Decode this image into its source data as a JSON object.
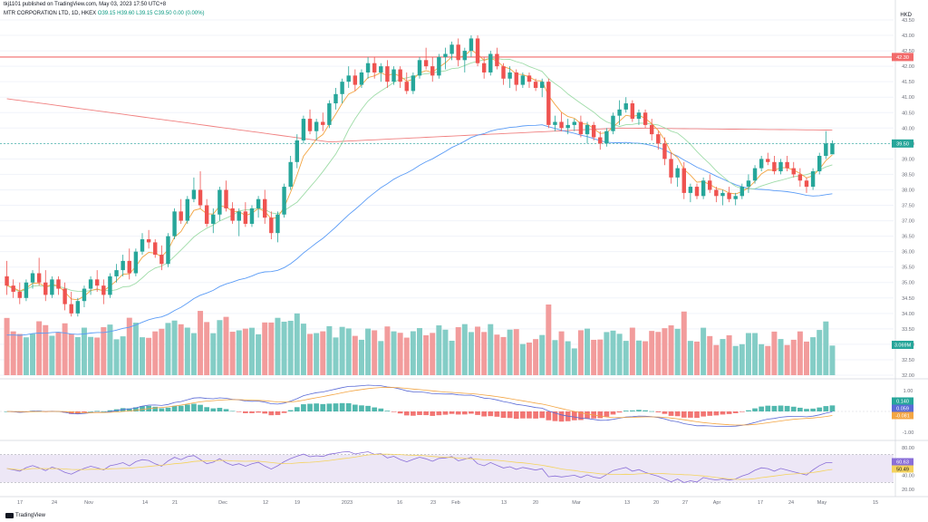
{
  "header": {
    "publisher_line": "tkj1101 published on TradingView.com, May 03, 2023 17:50 UTC+8",
    "symbol_line": "MTR CORPORATION LTD, 1D, HKEX",
    "ohlc_line": "O39.15 H39.60 L39.15 C39.50 0.00 (0.00%)",
    "currency": "HKD"
  },
  "branding": {
    "logo_text": "TradingView"
  },
  "colors": {
    "up": "#26a69a",
    "down": "#ef5350",
    "vol_up": "#84cdc6",
    "vol_down": "#f29c9c",
    "sma_blue": "#5b9cf6",
    "sma_red": "#f08080",
    "sma_green": "#9fdca8",
    "ema_orange": "#f3a543",
    "macd_line": "#5b6bd6",
    "macd_signal": "#f3a543",
    "rsi_line": "#8a6fd8",
    "rsi_ma": "#f4d35e",
    "rsi_band": "#ede7f6",
    "resistance": "#f26b6b",
    "grid": "#f0f3fa"
  },
  "chart_data": [
    {
      "type": "candlestick",
      "panel": "price",
      "y_axis_ticks": [
        "43.50",
        "43.00",
        "42.50",
        "42.00",
        "41.50",
        "41.00",
        "40.50",
        "40.00",
        "39.50",
        "39.00",
        "38.50",
        "38.00",
        "37.50",
        "37.00",
        "36.50",
        "36.00",
        "35.50",
        "35.00",
        "34.50",
        "34.00",
        "33.50",
        "33.00",
        "32.50",
        "32.00"
      ],
      "ylim": [
        32.0,
        43.5
      ],
      "last_price_label": "39.50",
      "resistance_label": "42.30",
      "resistance_value": 42.3,
      "volume_label": "3.069M",
      "x_axis_ticks": [
        "17",
        "24",
        "Nov",
        "14",
        "21",
        "Dec",
        "12",
        "19",
        "2023",
        "16",
        "23",
        "Feb",
        "13",
        "20",
        "Mar",
        "13",
        "20",
        "27",
        "Apr",
        "17",
        "24",
        "May",
        "15"
      ],
      "candles": [
        [
          35.2,
          35.7,
          34.6,
          34.9
        ],
        [
          34.9,
          35.1,
          34.5,
          34.7
        ],
        [
          34.7,
          35.0,
          34.3,
          34.5
        ],
        [
          34.5,
          35.1,
          34.4,
          35.0
        ],
        [
          35.0,
          35.4,
          34.8,
          35.3
        ],
        [
          35.3,
          35.8,
          34.9,
          35.0
        ],
        [
          35.0,
          35.4,
          34.4,
          34.6
        ],
        [
          34.6,
          35.2,
          34.5,
          35.1
        ],
        [
          35.1,
          35.2,
          34.6,
          34.8
        ],
        [
          34.8,
          35.0,
          34.1,
          34.3
        ],
        [
          34.3,
          34.7,
          33.9,
          34.0
        ],
        [
          34.0,
          34.5,
          33.9,
          34.4
        ],
        [
          34.4,
          34.9,
          34.2,
          34.8
        ],
        [
          34.8,
          35.2,
          34.6,
          35.1
        ],
        [
          35.1,
          35.4,
          34.7,
          34.9
        ],
        [
          34.9,
          35.1,
          34.3,
          34.6
        ],
        [
          34.6,
          35.3,
          34.5,
          35.2
        ],
        [
          35.2,
          35.6,
          35.0,
          35.4
        ],
        [
          35.4,
          35.9,
          35.2,
          35.7
        ],
        [
          35.7,
          36.1,
          35.1,
          35.3
        ],
        [
          35.3,
          36.1,
          35.2,
          36.0
        ],
        [
          36.0,
          36.6,
          35.9,
          36.4
        ],
        [
          36.4,
          36.7,
          36.1,
          36.3
        ],
        [
          36.3,
          36.4,
          35.8,
          35.9
        ],
        [
          35.9,
          36.2,
          35.4,
          35.6
        ],
        [
          35.6,
          36.6,
          35.5,
          36.5
        ],
        [
          36.5,
          37.4,
          36.4,
          37.3
        ],
        [
          37.3,
          37.7,
          36.9,
          37.0
        ],
        [
          37.0,
          37.8,
          36.9,
          37.7
        ],
        [
          37.7,
          38.4,
          37.6,
          38.0
        ],
        [
          38.0,
          38.6,
          37.4,
          37.5
        ],
        [
          37.5,
          37.7,
          36.8,
          36.9
        ],
        [
          36.9,
          37.4,
          36.6,
          37.2
        ],
        [
          37.2,
          38.1,
          37.0,
          38.0
        ],
        [
          38.0,
          38.3,
          37.3,
          37.4
        ],
        [
          37.4,
          37.6,
          36.9,
          37.0
        ],
        [
          37.0,
          37.4,
          36.5,
          37.3
        ],
        [
          37.3,
          37.6,
          36.8,
          36.9
        ],
        [
          36.9,
          37.5,
          36.8,
          37.4
        ],
        [
          37.4,
          37.8,
          37.1,
          37.7
        ],
        [
          37.7,
          38.0,
          36.9,
          37.1
        ],
        [
          37.1,
          37.3,
          36.4,
          36.6
        ],
        [
          36.6,
          37.3,
          36.3,
          37.2
        ],
        [
          37.2,
          38.2,
          37.1,
          38.1
        ],
        [
          38.1,
          39.1,
          38.0,
          38.9
        ],
        [
          38.9,
          39.8,
          38.7,
          39.6
        ],
        [
          39.6,
          40.4,
          39.5,
          40.3
        ],
        [
          40.3,
          40.6,
          39.8,
          39.9
        ],
        [
          39.9,
          40.3,
          39.6,
          40.2
        ],
        [
          40.2,
          40.5,
          39.9,
          40.1
        ],
        [
          40.1,
          40.9,
          40.0,
          40.8
        ],
        [
          40.8,
          41.3,
          40.6,
          41.1
        ],
        [
          41.1,
          41.6,
          40.8,
          41.5
        ],
        [
          41.5,
          42.0,
          41.3,
          41.7
        ],
        [
          41.7,
          41.9,
          41.2,
          41.4
        ],
        [
          41.4,
          41.9,
          41.3,
          41.8
        ],
        [
          41.8,
          42.3,
          41.6,
          42.1
        ],
        [
          42.1,
          42.3,
          41.6,
          41.8
        ],
        [
          41.8,
          42.1,
          41.5,
          42.0
        ],
        [
          42.0,
          42.2,
          41.3,
          41.5
        ],
        [
          41.5,
          42.0,
          41.4,
          41.9
        ],
        [
          41.9,
          42.0,
          41.3,
          41.5
        ],
        [
          41.5,
          41.8,
          41.1,
          41.2
        ],
        [
          41.2,
          41.8,
          41.1,
          41.7
        ],
        [
          41.7,
          42.3,
          41.6,
          42.2
        ],
        [
          42.2,
          42.6,
          41.9,
          42.0
        ],
        [
          42.0,
          42.3,
          41.5,
          41.7
        ],
        [
          41.7,
          42.4,
          41.6,
          42.3
        ],
        [
          42.3,
          42.6,
          41.9,
          42.4
        ],
        [
          42.4,
          42.8,
          42.2,
          42.7
        ],
        [
          42.7,
          42.9,
          42.0,
          42.2
        ],
        [
          42.2,
          42.6,
          41.8,
          42.5
        ],
        [
          42.5,
          43.0,
          42.3,
          42.9
        ],
        [
          42.9,
          43.0,
          42.0,
          42.1
        ],
        [
          42.1,
          42.3,
          41.6,
          41.8
        ],
        [
          41.8,
          42.5,
          41.7,
          42.4
        ],
        [
          42.4,
          42.6,
          41.9,
          42.0
        ],
        [
          42.0,
          42.1,
          41.4,
          41.6
        ],
        [
          41.6,
          42.0,
          41.3,
          41.8
        ],
        [
          41.8,
          41.9,
          41.2,
          41.4
        ],
        [
          41.4,
          41.8,
          41.3,
          41.7
        ],
        [
          41.7,
          41.8,
          41.3,
          41.5
        ],
        [
          41.5,
          41.6,
          41.2,
          41.3
        ],
        [
          41.3,
          41.6,
          41.0,
          41.5
        ],
        [
          41.5,
          41.6,
          40.0,
          40.1
        ],
        [
          40.1,
          40.4,
          39.9,
          40.2
        ],
        [
          40.2,
          40.5,
          39.9,
          40.0
        ],
        [
          40.0,
          40.3,
          39.8,
          40.1
        ],
        [
          40.1,
          40.3,
          39.9,
          40.2
        ],
        [
          40.2,
          40.4,
          39.7,
          39.8
        ],
        [
          39.8,
          40.2,
          39.5,
          40.1
        ],
        [
          40.1,
          40.2,
          39.6,
          39.7
        ],
        [
          39.7,
          39.9,
          39.3,
          39.5
        ],
        [
          39.5,
          40.0,
          39.4,
          39.9
        ],
        [
          39.9,
          40.5,
          39.8,
          40.4
        ],
        [
          40.4,
          40.9,
          40.1,
          40.6
        ],
        [
          40.6,
          41.0,
          40.5,
          40.8
        ],
        [
          40.8,
          40.9,
          40.2,
          40.3
        ],
        [
          40.3,
          40.6,
          40.1,
          40.5
        ],
        [
          40.5,
          40.6,
          40.0,
          40.1
        ],
        [
          40.1,
          40.3,
          39.6,
          39.8
        ],
        [
          39.8,
          39.9,
          39.3,
          39.5
        ],
        [
          39.5,
          39.7,
          38.8,
          39.0
        ],
        [
          39.0,
          39.2,
          38.2,
          38.4
        ],
        [
          38.4,
          38.8,
          38.1,
          38.7
        ],
        [
          38.7,
          38.9,
          37.7,
          37.9
        ],
        [
          37.9,
          38.2,
          37.6,
          38.1
        ],
        [
          38.1,
          38.2,
          37.7,
          37.8
        ],
        [
          37.8,
          38.4,
          37.7,
          38.3
        ],
        [
          38.3,
          38.5,
          37.9,
          38.0
        ],
        [
          38.0,
          38.1,
          37.6,
          37.8
        ],
        [
          37.8,
          38.0,
          37.5,
          37.9
        ],
        [
          37.9,
          38.1,
          37.6,
          37.7
        ],
        [
          37.7,
          37.9,
          37.5,
          37.8
        ],
        [
          37.8,
          38.2,
          37.7,
          38.1
        ],
        [
          38.1,
          38.5,
          37.9,
          38.3
        ],
        [
          38.3,
          38.8,
          38.2,
          38.7
        ],
        [
          38.7,
          39.1,
          38.6,
          39.0
        ],
        [
          39.0,
          39.2,
          38.8,
          38.9
        ],
        [
          38.9,
          39.1,
          38.5,
          38.6
        ],
        [
          38.6,
          39.0,
          38.5,
          38.9
        ],
        [
          38.9,
          39.1,
          38.6,
          38.7
        ],
        [
          38.7,
          38.9,
          38.4,
          38.5
        ],
        [
          38.5,
          38.7,
          38.1,
          38.3
        ],
        [
          38.3,
          38.4,
          37.9,
          38.1
        ],
        [
          38.1,
          38.7,
          38.0,
          38.6
        ],
        [
          38.6,
          39.2,
          38.5,
          39.1
        ],
        [
          39.1,
          39.9,
          39.0,
          39.5
        ],
        [
          39.15,
          39.6,
          39.15,
          39.5
        ]
      ],
      "volume_direction_note": "volume bars colored by candle direction"
    },
    {
      "type": "line",
      "panel": "macd",
      "y_axis_ticks": [
        "1.00",
        "0.00",
        "-1.00"
      ],
      "ylim": [
        -1.3,
        1.3
      ],
      "value_labels": {
        "histogram": "0.140",
        "macd": "0.059",
        "signal": "-0.081"
      }
    },
    {
      "type": "line",
      "panel": "rsi",
      "y_axis_ticks": [
        "80.00",
        "40.00",
        "20.00"
      ],
      "ylim": [
        15,
        85
      ],
      "band": [
        30,
        70
      ],
      "value_labels": {
        "rsi": "60.63",
        "rsi_ma": "50.49"
      }
    }
  ]
}
